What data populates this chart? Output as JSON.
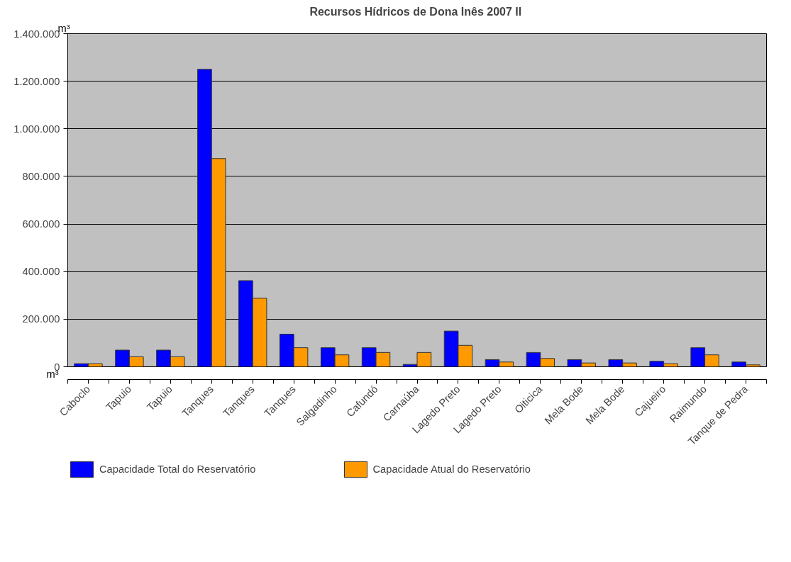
{
  "chart_data": {
    "type": "bar",
    "title": "Recursos Hídricos de Dona Inês 2007  II",
    "ylabel": "m³",
    "annotations": [
      "m³"
    ],
    "categories": [
      "Caboclo",
      "Tapuio",
      "Tapuio",
      "Tanques",
      "Tanques",
      "Tanques",
      "Salgadinho",
      "Cafundó",
      "Carnaúba",
      "Lagedo Preto",
      "Lagedo Preto",
      "Oiticica",
      "Mela Bode",
      "Mela Bode",
      "Cajueiro",
      "Raimundo",
      "Tanque de Pedra"
    ],
    "series": [
      {
        "name": "Capacidade Total do Reservatório",
        "color": "#0000ff",
        "values": [
          13000,
          70000,
          70000,
          1250000,
          362000,
          137000,
          80000,
          80000,
          10000,
          150000,
          30000,
          60000,
          30000,
          30000,
          23000,
          80000,
          20000
        ]
      },
      {
        "name": "Capacidade Atual do Reservatório",
        "color": "#ff9900",
        "values": [
          13000,
          42000,
          42000,
          875000,
          288000,
          80000,
          50000,
          60000,
          60000,
          90000,
          20000,
          35000,
          16000,
          16000,
          13000,
          50000,
          8000
        ]
      }
    ],
    "ylim": [
      0,
      1400000
    ],
    "yticks": [
      {
        "value": 0,
        "label": "0"
      },
      {
        "value": 200000,
        "label": "200.000"
      },
      {
        "value": 400000,
        "label": "400.000"
      },
      {
        "value": 600000,
        "label": "600.000"
      },
      {
        "value": 800000,
        "label": "800.000"
      },
      {
        "value": 1000000,
        "label": "1.000.000"
      },
      {
        "value": 1200000,
        "label": "1.200.000"
      },
      {
        "value": 1400000,
        "label": "1.400.000"
      }
    ],
    "grid": "y",
    "legend": "bottom"
  }
}
